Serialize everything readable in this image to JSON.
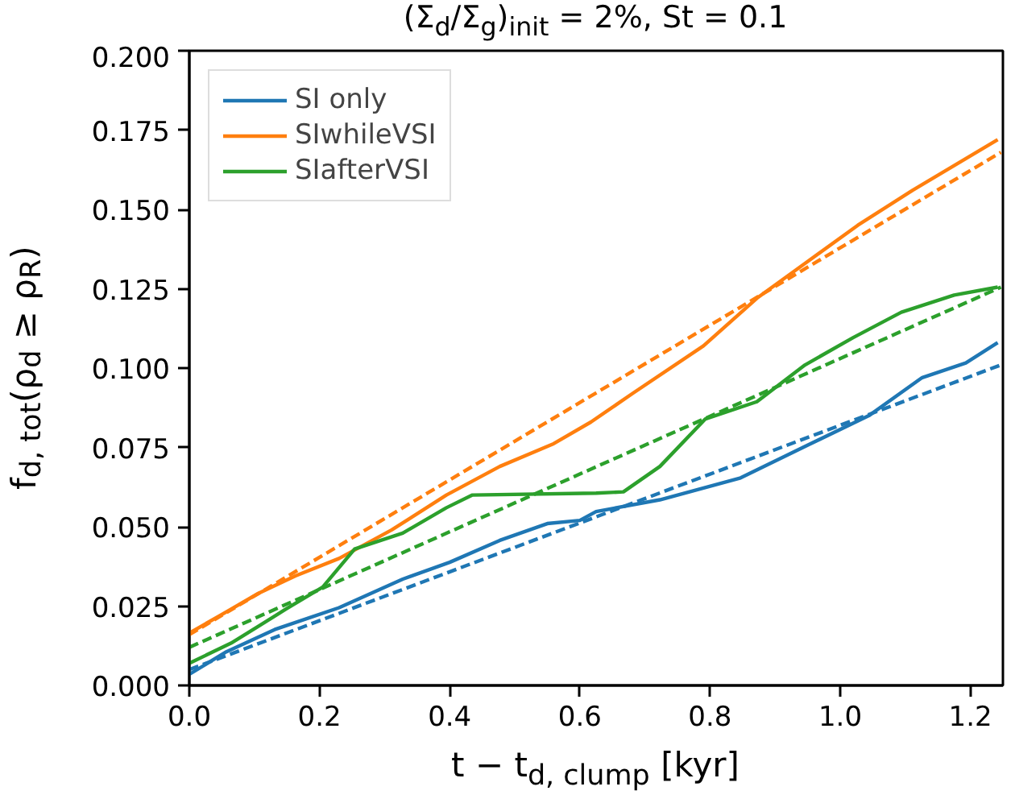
{
  "chart_data": {
    "type": "line",
    "title": "(Σ$_{d}$/Σ$_{g}$)$_{init}$ = 2%, St = 0.1",
    "xlabel": "t − t$_{d, clump}$ [kyr]",
    "ylabel": "f$_{d, tot}$(ρ$_{d}$ ≥ ρ$_{R}$)",
    "xlim": [
      0,
      1.25
    ],
    "xticks": [
      {
        "value": 0,
        "label": "0.0"
      },
      0.2,
      0.4,
      0.6,
      0.8,
      {
        "value": 1,
        "label": "1.0"
      },
      1.2
    ],
    "ylim": [
      0,
      0.2
    ],
    "yticks": [
      {
        "value": 0,
        "label": "0.000"
      },
      0.025,
      {
        "value": 0.05,
        "label": "0.050"
      },
      0.075,
      {
        "value": 0.1,
        "label": "0.100"
      },
      0.125,
      {
        "value": 0.15,
        "label": "0.150"
      },
      0.175,
      {
        "value": 0.2,
        "label": "0.200"
      }
    ],
    "grid": false,
    "legend": "top left",
    "line_style": "solid",
    "series": [
      {
        "name": "SI only",
        "color": "#1f77b4",
        "x": [
          0,
          0.057,
          0.131,
          0.23,
          0.328,
          0.4,
          0.477,
          0.55,
          0.6,
          0.625,
          0.723,
          0.847,
          0.953,
          1.044,
          1.126,
          1.193,
          1.242
        ],
        "values": [
          0.0035,
          0.0106,
          0.0176,
          0.0245,
          0.0335,
          0.0388,
          0.0457,
          0.051,
          0.052,
          0.0548,
          0.0585,
          0.0654,
          0.076,
          0.085,
          0.097,
          0.1016,
          0.108
        ]
      },
      {
        "name": "SIwhileVSI",
        "color": "#ff7f0e",
        "x": [
          0,
          0.064,
          0.106,
          0.163,
          0.23,
          0.311,
          0.395,
          0.477,
          0.558,
          0.617,
          0.681,
          0.79,
          0.872,
          0.946,
          1.027,
          1.111,
          1.242
        ],
        "values": [
          0.0165,
          0.024,
          0.029,
          0.0345,
          0.04,
          0.049,
          0.06,
          0.069,
          0.076,
          0.083,
          0.092,
          0.107,
          0.122,
          0.133,
          0.145,
          0.156,
          0.172
        ]
      },
      {
        "name": "SIafterVSI",
        "color": "#2ca02c",
        "x": [
          0,
          0.064,
          0.106,
          0.148,
          0.205,
          0.254,
          0.328,
          0.395,
          0.435,
          0.625,
          0.667,
          0.723,
          0.793,
          0.872,
          0.946,
          1.02,
          1.094,
          1.175,
          1.242
        ],
        "values": [
          0.007,
          0.0133,
          0.0186,
          0.024,
          0.031,
          0.043,
          0.048,
          0.056,
          0.06,
          0.0606,
          0.061,
          0.069,
          0.084,
          0.0894,
          0.101,
          0.1096,
          0.1176,
          0.123,
          0.1255
        ]
      },
      {
        "color": "#1f77b4",
        "line_style": "dashed",
        "x": [
          0,
          1.247
        ],
        "values": [
          0.005,
          0.101
        ]
      },
      {
        "color": "#ff7f0e",
        "line_style": "dashed",
        "x": [
          0,
          1.247
        ],
        "values": [
          0.016,
          0.168
        ]
      },
      {
        "color": "#2ca02c",
        "line_style": "dashed",
        "x": [
          0,
          1.247
        ],
        "values": [
          0.012,
          0.1255
        ]
      }
    ]
  }
}
